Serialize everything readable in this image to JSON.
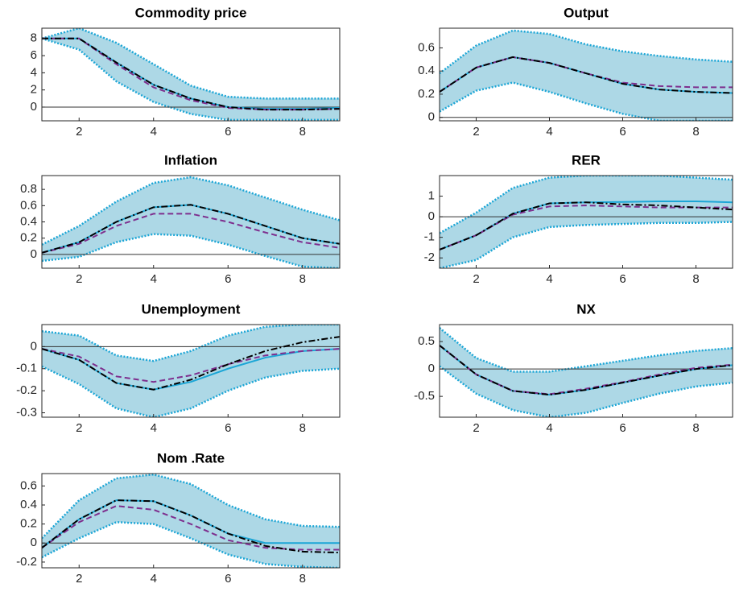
{
  "chart_data": [
    {
      "type": "line",
      "title": "Commodity price",
      "x": [
        1,
        2,
        3,
        4,
        5,
        6,
        7,
        8,
        9
      ],
      "xlim": [
        1,
        9
      ],
      "xticks": [
        2,
        4,
        6,
        8
      ],
      "ylim": [
        -1.6,
        9.2
      ],
      "yticks": [
        0,
        2,
        4,
        6,
        8
      ],
      "band": {
        "color": "#add8e6",
        "edge_color": "#1ca6d6",
        "upper": [
          8,
          9.2,
          7.5,
          5,
          2.5,
          1.2,
          1,
          1,
          1
        ],
        "lower": [
          8,
          6.7,
          3.0,
          0.6,
          -0.8,
          -1.5,
          -1.5,
          -1.5,
          -1.5
        ]
      },
      "series": [
        {
          "color": "#1ca6d6",
          "style": "solid",
          "values": [
            8,
            8,
            5.2,
            2.6,
            1.0,
            0.0,
            -0.2,
            -0.2,
            -0.1
          ]
        },
        {
          "color": "#7e2f8e",
          "style": "dashed",
          "values": [
            8,
            8,
            5,
            2.3,
            0.8,
            -0.1,
            -0.3,
            -0.3,
            -0.2
          ]
        },
        {
          "color": "#000000",
          "style": "dashdot",
          "values": [
            8,
            8,
            5.2,
            2.6,
            1.0,
            0,
            -0.3,
            -0.3,
            -0.2
          ]
        }
      ]
    },
    {
      "type": "line",
      "title": "Output",
      "x": [
        1,
        2,
        3,
        4,
        5,
        6,
        7,
        8,
        9
      ],
      "xlim": [
        1,
        9
      ],
      "xticks": [
        2,
        4,
        6,
        8
      ],
      "ylim": [
        -0.03,
        0.77
      ],
      "yticks": [
        0,
        0.2,
        0.4,
        0.6
      ],
      "band": {
        "color": "#add8e6",
        "edge_color": "#1ca6d6",
        "upper": [
          0.38,
          0.62,
          0.75,
          0.72,
          0.63,
          0.57,
          0.53,
          0.5,
          0.48
        ],
        "lower": [
          0.05,
          0.23,
          0.3,
          0.22,
          0.12,
          0.03,
          -0.03,
          -0.03,
          -0.03
        ]
      },
      "series": [
        {
          "color": "#1ca6d6",
          "style": "solid",
          "values": [
            0.22,
            0.43,
            0.52,
            0.47,
            0.38,
            0.29,
            0.24,
            0.22,
            0.21
          ]
        },
        {
          "color": "#7e2f8e",
          "style": "dashed",
          "values": [
            0.22,
            0.43,
            0.52,
            0.47,
            0.38,
            0.3,
            0.27,
            0.26,
            0.26
          ]
        },
        {
          "color": "#000000",
          "style": "dashdot",
          "values": [
            0.22,
            0.43,
            0.52,
            0.47,
            0.38,
            0.29,
            0.24,
            0.22,
            0.21
          ]
        }
      ]
    },
    {
      "type": "line",
      "title": "Inflation",
      "x": [
        1,
        2,
        3,
        4,
        5,
        6,
        7,
        8,
        9
      ],
      "xlim": [
        1,
        9
      ],
      "xticks": [
        2,
        4,
        6,
        8
      ],
      "ylim": [
        -0.17,
        0.97
      ],
      "yticks": [
        0,
        0.2,
        0.4,
        0.6,
        0.8
      ],
      "band": {
        "color": "#add8e6",
        "edge_color": "#1ca6d6",
        "upper": [
          0.12,
          0.35,
          0.65,
          0.88,
          0.95,
          0.85,
          0.7,
          0.55,
          0.42
        ],
        "lower": [
          -0.08,
          -0.03,
          0.15,
          0.25,
          0.23,
          0.12,
          -0.02,
          -0.15,
          -0.17
        ]
      },
      "series": [
        {
          "color": "#1ca6d6",
          "style": "solid",
          "values": [
            0.02,
            0.15,
            0.4,
            0.58,
            0.61,
            0.5,
            0.35,
            0.2,
            0.13
          ]
        },
        {
          "color": "#7e2f8e",
          "style": "dashed",
          "values": [
            0.02,
            0.13,
            0.35,
            0.5,
            0.5,
            0.4,
            0.27,
            0.15,
            0.08
          ]
        },
        {
          "color": "#000000",
          "style": "dashdot",
          "values": [
            0.02,
            0.15,
            0.4,
            0.58,
            0.61,
            0.5,
            0.35,
            0.2,
            0.13
          ]
        }
      ]
    },
    {
      "type": "line",
      "title": "RER",
      "x": [
        1,
        2,
        3,
        4,
        5,
        6,
        7,
        8,
        9
      ],
      "xlim": [
        1,
        9
      ],
      "xticks": [
        2,
        4,
        6,
        8
      ],
      "ylim": [
        -2.5,
        2.0
      ],
      "yticks": [
        -2,
        -1,
        0,
        1
      ],
      "band": {
        "color": "#add8e6",
        "edge_color": "#1ca6d6",
        "upper": [
          -0.8,
          0.2,
          1.4,
          1.9,
          2.0,
          2.0,
          2.0,
          1.9,
          1.8
        ],
        "lower": [
          -2.5,
          -2.1,
          -1.0,
          -0.5,
          -0.4,
          -0.35,
          -0.3,
          -0.3,
          -0.25
        ]
      },
      "series": [
        {
          "color": "#1ca6d6",
          "style": "solid",
          "values": [
            -1.6,
            -0.9,
            0.15,
            0.65,
            0.7,
            0.72,
            0.75,
            0.75,
            0.7
          ]
        },
        {
          "color": "#7e2f8e",
          "style": "dashed",
          "values": [
            -1.6,
            -0.9,
            0.1,
            0.5,
            0.55,
            0.5,
            0.45,
            0.45,
            0.45
          ]
        },
        {
          "color": "#000000",
          "style": "dashdot",
          "values": [
            -1.6,
            -0.9,
            0.15,
            0.65,
            0.7,
            0.6,
            0.55,
            0.45,
            0.35
          ]
        }
      ]
    },
    {
      "type": "line",
      "title": "Unemployment",
      "x": [
        1,
        2,
        3,
        4,
        5,
        6,
        7,
        8,
        9
      ],
      "xlim": [
        1,
        9
      ],
      "xticks": [
        2,
        4,
        6,
        8
      ],
      "ylim": [
        -0.32,
        0.1
      ],
      "yticks": [
        -0.3,
        -0.2,
        -0.1,
        0
      ],
      "band": {
        "color": "#add8e6",
        "edge_color": "#1ca6d6",
        "upper": [
          0.07,
          0.05,
          -0.04,
          -0.065,
          -0.02,
          0.05,
          0.09,
          0.1,
          0.1
        ],
        "lower": [
          -0.09,
          -0.17,
          -0.28,
          -0.32,
          -0.28,
          -0.2,
          -0.14,
          -0.11,
          -0.1
        ]
      },
      "series": [
        {
          "color": "#1ca6d6",
          "style": "solid",
          "values": [
            -0.01,
            -0.06,
            -0.165,
            -0.195,
            -0.16,
            -0.1,
            -0.05,
            -0.02,
            -0.01
          ]
        },
        {
          "color": "#7e2f8e",
          "style": "dashed",
          "values": [
            -0.01,
            -0.045,
            -0.135,
            -0.16,
            -0.13,
            -0.08,
            -0.04,
            -0.02,
            -0.01
          ]
        },
        {
          "color": "#000000",
          "style": "dashdot",
          "values": [
            -0.01,
            -0.06,
            -0.165,
            -0.195,
            -0.15,
            -0.08,
            -0.02,
            0.02,
            0.045
          ]
        }
      ]
    },
    {
      "type": "line",
      "title": "NX",
      "x": [
        1,
        2,
        3,
        4,
        5,
        6,
        7,
        8,
        9
      ],
      "xlim": [
        1,
        9
      ],
      "xticks": [
        2,
        4,
        6,
        8
      ],
      "ylim": [
        -0.88,
        0.81
      ],
      "yticks": [
        -0.5,
        0,
        0.5
      ],
      "band": {
        "color": "#add8e6",
        "edge_color": "#1ca6d6",
        "upper": [
          0.75,
          0.2,
          -0.05,
          -0.05,
          0.05,
          0.15,
          0.25,
          0.33,
          0.38
        ],
        "lower": [
          0.05,
          -0.45,
          -0.75,
          -0.88,
          -0.8,
          -0.62,
          -0.45,
          -0.32,
          -0.25
        ]
      },
      "series": [
        {
          "color": "#1ca6d6",
          "style": "solid",
          "values": [
            0.43,
            -0.1,
            -0.4,
            -0.47,
            -0.38,
            -0.25,
            -0.12,
            0,
            0.07
          ]
        },
        {
          "color": "#7e2f8e",
          "style": "dashed",
          "values": [
            0.43,
            -0.1,
            -0.4,
            -0.46,
            -0.36,
            -0.24,
            -0.1,
            0.02,
            0.08
          ]
        },
        {
          "color": "#000000",
          "style": "dashdot",
          "values": [
            0.43,
            -0.1,
            -0.4,
            -0.47,
            -0.38,
            -0.25,
            -0.12,
            0,
            0.07
          ]
        }
      ]
    },
    {
      "type": "line",
      "title": "Nom .Rate",
      "x": [
        1,
        2,
        3,
        4,
        5,
        6,
        7,
        8,
        9
      ],
      "xlim": [
        1,
        9
      ],
      "xticks": [
        2,
        4,
        6,
        8
      ],
      "ylim": [
        -0.26,
        0.73
      ],
      "yticks": [
        -0.2,
        0,
        0.2,
        0.4,
        0.6
      ],
      "band": {
        "color": "#add8e6",
        "edge_color": "#1ca6d6",
        "upper": [
          0.05,
          0.45,
          0.68,
          0.72,
          0.62,
          0.4,
          0.25,
          0.18,
          0.17
        ],
        "lower": [
          -0.15,
          0.05,
          0.22,
          0.2,
          0.05,
          -0.12,
          -0.22,
          -0.25,
          -0.26
        ]
      },
      "series": [
        {
          "color": "#1ca6d6",
          "style": "solid",
          "values": [
            -0.05,
            0.25,
            0.45,
            0.44,
            0.29,
            0.1,
            0.0,
            0.0,
            0.0
          ]
        },
        {
          "color": "#7e2f8e",
          "style": "dashed",
          "values": [
            -0.05,
            0.22,
            0.39,
            0.35,
            0.2,
            0.03,
            -0.05,
            -0.07,
            -0.07
          ]
        },
        {
          "color": "#000000",
          "style": "dashdot",
          "values": [
            -0.05,
            0.25,
            0.45,
            0.44,
            0.29,
            0.1,
            -0.03,
            -0.09,
            -0.1
          ]
        }
      ]
    }
  ]
}
